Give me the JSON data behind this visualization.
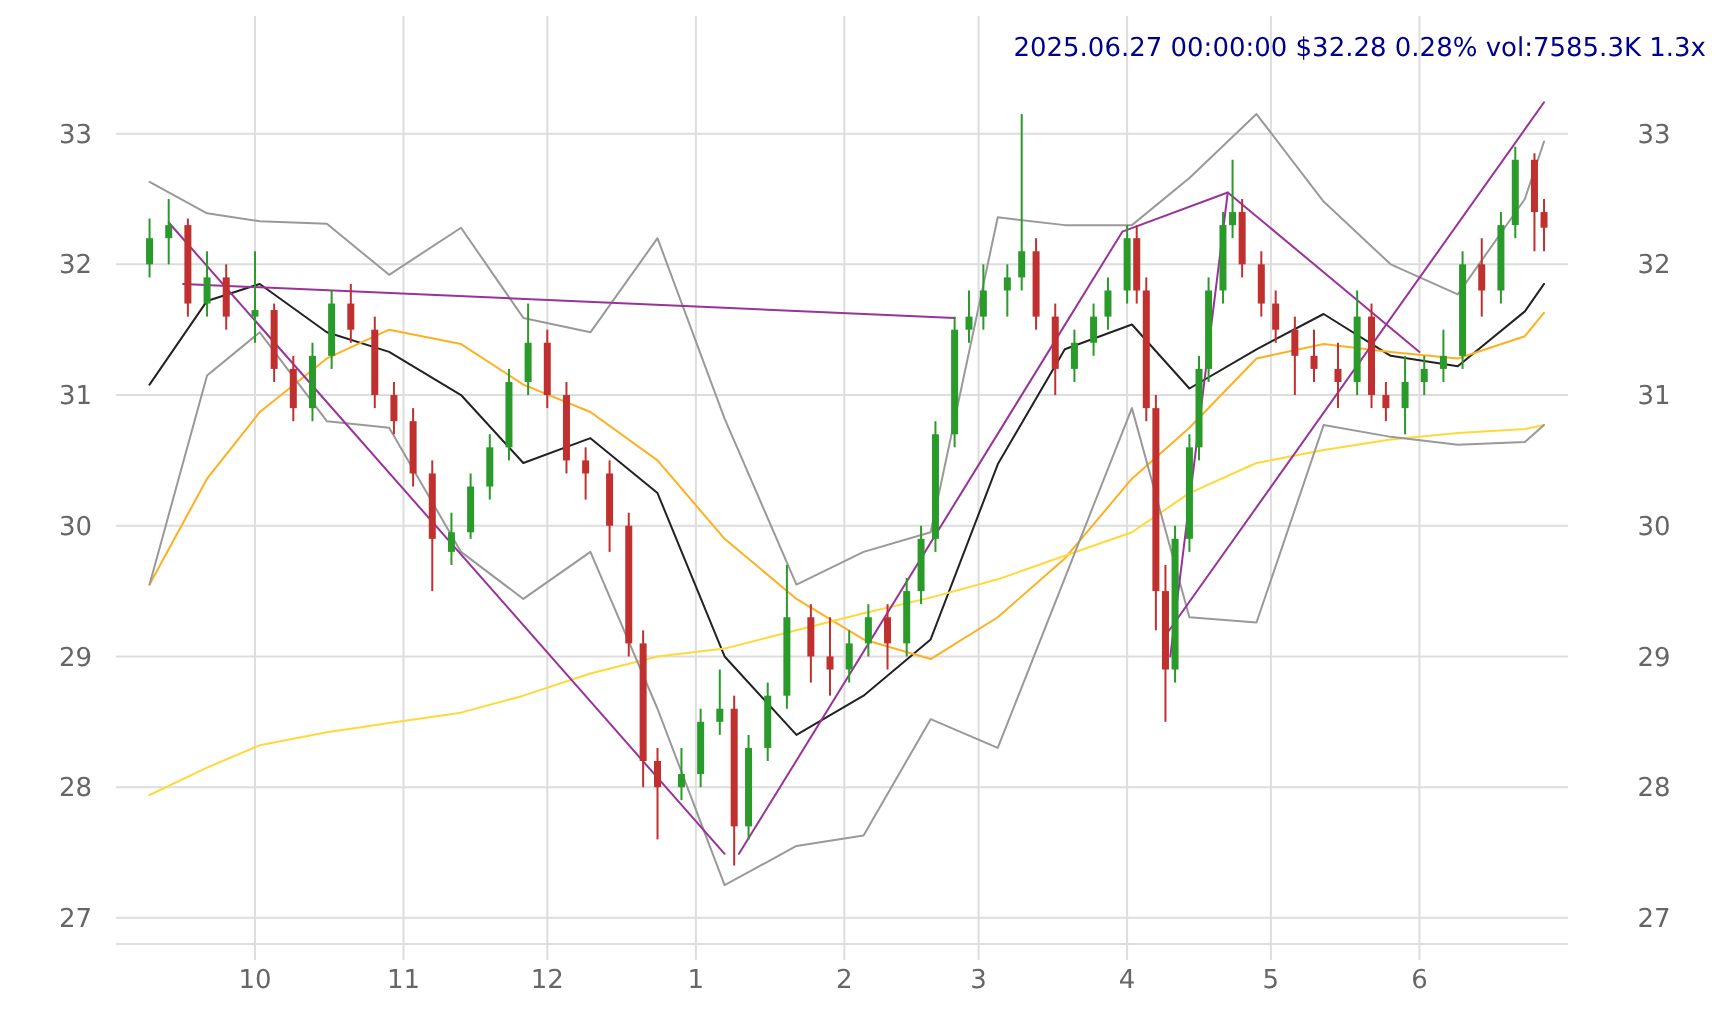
{
  "chart_data": {
    "type": "candlestick",
    "annotations": [
      "2025.06.27 00:00:00 $32.28 0.28% vol:7585.3K 1.3x"
    ],
    "xlim": [
      "2024-09-02",
      "2025-07-02"
    ],
    "xticks": [
      {
        "value": "2024-10-01",
        "label": "10"
      },
      {
        "value": "2024-11-01",
        "label": "11"
      },
      {
        "value": "2024-12-01",
        "label": "12"
      },
      {
        "value": "2025-01-01",
        "label": "1"
      },
      {
        "value": "2025-02-01",
        "label": "2"
      },
      {
        "value": "2025-03-01",
        "label": "3"
      },
      {
        "value": "2025-04-01",
        "label": "4"
      },
      {
        "value": "2025-05-01",
        "label": "5"
      },
      {
        "value": "2025-06-01",
        "label": "6"
      }
    ],
    "ylim": [
      26.8,
      33.9
    ],
    "yticks": [
      27,
      28,
      29,
      30,
      31,
      32,
      33
    ],
    "y2lim": [
      26.8,
      33.9
    ],
    "y2ticks": [
      27,
      28,
      29,
      30,
      31,
      32,
      33
    ],
    "grid": true,
    "series": [
      {
        "x": [
          "2024-09-09",
          "2024-09-13",
          "2024-09-17",
          "2024-09-21",
          "2024-09-25",
          "2024-10-01",
          "2024-10-05",
          "2024-10-09",
          "2024-10-13",
          "2024-10-17",
          "2024-10-21",
          "2024-10-26",
          "2024-10-30",
          "2024-11-03",
          "2024-11-07",
          "2024-11-11",
          "2024-11-15",
          "2024-11-19",
          "2024-11-23",
          "2024-11-27",
          "2024-12-01",
          "2024-12-05",
          "2024-12-09",
          "2024-12-14",
          "2024-12-18",
          "2024-12-21",
          "2024-12-24",
          "2024-12-29",
          "2025-01-02",
          "2025-01-06",
          "2025-01-09",
          "2025-01-12",
          "2025-01-16",
          "2025-01-20",
          "2025-01-25",
          "2025-01-29",
          "2025-02-02",
          "2025-02-06",
          "2025-02-10",
          "2025-02-14",
          "2025-02-17",
          "2025-02-20",
          "2025-02-24",
          "2025-02-27",
          "2025-03-02",
          "2025-03-07",
          "2025-03-10",
          "2025-03-13",
          "2025-03-17",
          "2025-03-21",
          "2025-03-25",
          "2025-03-28",
          "2025-04-01",
          "2025-04-03",
          "2025-04-05",
          "2025-04-07",
          "2025-04-09",
          "2025-04-11",
          "2025-04-14",
          "2025-04-16",
          "2025-04-18",
          "2025-04-21",
          "2025-04-23",
          "2025-04-25",
          "2025-04-29",
          "2025-05-02",
          "2025-05-06",
          "2025-05-10",
          "2025-05-15",
          "2025-05-19",
          "2025-05-22",
          "2025-05-25",
          "2025-05-29",
          "2025-06-02",
          "2025-06-06",
          "2025-06-10",
          "2025-06-14",
          "2025-06-18",
          "2025-06-21",
          "2025-06-25",
          "2025-06-27"
        ],
        "ohlc": [
          [
            32.0,
            32.35,
            31.9,
            32.2
          ],
          [
            32.2,
            32.5,
            32.0,
            32.3
          ],
          [
            32.3,
            32.35,
            31.6,
            31.7
          ],
          [
            31.7,
            32.1,
            31.6,
            31.9
          ],
          [
            31.9,
            32.0,
            31.5,
            31.6
          ],
          [
            31.6,
            32.1,
            31.4,
            31.65
          ],
          [
            31.65,
            31.7,
            31.1,
            31.2
          ],
          [
            31.2,
            31.3,
            30.8,
            30.9
          ],
          [
            30.9,
            31.4,
            30.8,
            31.3
          ],
          [
            31.3,
            31.8,
            31.2,
            31.7
          ],
          [
            31.7,
            31.85,
            31.4,
            31.5
          ],
          [
            31.5,
            31.6,
            30.9,
            31.0
          ],
          [
            31.0,
            31.1,
            30.7,
            30.8
          ],
          [
            30.8,
            30.9,
            30.3,
            30.4
          ],
          [
            30.4,
            30.5,
            29.5,
            29.9
          ],
          [
            29.8,
            30.1,
            29.7,
            29.95
          ],
          [
            29.95,
            30.4,
            29.9,
            30.3
          ],
          [
            30.3,
            30.7,
            30.2,
            30.6
          ],
          [
            30.6,
            31.2,
            30.5,
            31.1
          ],
          [
            31.1,
            31.7,
            31.0,
            31.4
          ],
          [
            31.4,
            31.5,
            30.9,
            31.0
          ],
          [
            31.0,
            31.1,
            30.4,
            30.5
          ],
          [
            30.5,
            30.6,
            30.2,
            30.4
          ],
          [
            30.4,
            30.5,
            29.8,
            30.0
          ],
          [
            30.0,
            30.1,
            29.0,
            29.1
          ],
          [
            29.1,
            29.2,
            28.0,
            28.2
          ],
          [
            28.2,
            28.3,
            27.6,
            28.0
          ],
          [
            28.0,
            28.3,
            27.9,
            28.1
          ],
          [
            28.1,
            28.6,
            28.0,
            28.5
          ],
          [
            28.5,
            28.9,
            28.4,
            28.6
          ],
          [
            28.6,
            28.7,
            27.4,
            27.7
          ],
          [
            27.7,
            28.4,
            27.6,
            28.3
          ],
          [
            28.3,
            28.8,
            28.2,
            28.7
          ],
          [
            28.7,
            29.7,
            28.6,
            29.3
          ],
          [
            29.3,
            29.4,
            28.8,
            29.0
          ],
          [
            29.0,
            29.3,
            28.7,
            28.9
          ],
          [
            28.9,
            29.2,
            28.8,
            29.1
          ],
          [
            29.1,
            29.4,
            29.0,
            29.3
          ],
          [
            29.3,
            29.4,
            28.9,
            29.1
          ],
          [
            29.1,
            29.6,
            29.0,
            29.5
          ],
          [
            29.5,
            30.0,
            29.4,
            29.9
          ],
          [
            29.9,
            30.8,
            29.8,
            30.7
          ],
          [
            30.7,
            31.6,
            30.6,
            31.5
          ],
          [
            31.5,
            31.8,
            31.4,
            31.6
          ],
          [
            31.6,
            32.0,
            31.5,
            31.8
          ],
          [
            31.8,
            32.0,
            31.6,
            31.9
          ],
          [
            31.9,
            33.15,
            31.8,
            32.1
          ],
          [
            32.1,
            32.2,
            31.5,
            31.6
          ],
          [
            31.6,
            31.7,
            31.0,
            31.2
          ],
          [
            31.2,
            31.5,
            31.1,
            31.4
          ],
          [
            31.4,
            31.7,
            31.3,
            31.6
          ],
          [
            31.6,
            31.9,
            31.5,
            31.8
          ],
          [
            31.8,
            32.3,
            31.7,
            32.2
          ],
          [
            32.2,
            32.3,
            31.7,
            31.8
          ],
          [
            31.8,
            31.9,
            30.8,
            30.9
          ],
          [
            30.9,
            31.0,
            29.2,
            29.5
          ],
          [
            29.5,
            29.7,
            28.5,
            28.9
          ],
          [
            28.9,
            30.0,
            28.8,
            29.9
          ],
          [
            29.9,
            30.7,
            29.8,
            30.6
          ],
          [
            30.6,
            31.3,
            30.5,
            31.2
          ],
          [
            31.2,
            31.9,
            31.1,
            31.8
          ],
          [
            31.8,
            32.4,
            31.7,
            32.3
          ],
          [
            32.3,
            32.8,
            32.2,
            32.4
          ],
          [
            32.4,
            32.5,
            31.9,
            32.0
          ],
          [
            32.0,
            32.1,
            31.6,
            31.7
          ],
          [
            31.7,
            31.8,
            31.4,
            31.5
          ],
          [
            31.5,
            31.6,
            31.0,
            31.3
          ],
          [
            31.3,
            31.5,
            31.1,
            31.2
          ],
          [
            31.2,
            31.4,
            30.9,
            31.1
          ],
          [
            31.1,
            31.8,
            31.0,
            31.6
          ],
          [
            31.6,
            31.7,
            30.9,
            31.0
          ],
          [
            31.0,
            31.1,
            30.8,
            30.9
          ],
          [
            30.9,
            31.3,
            30.7,
            31.1
          ],
          [
            31.1,
            31.3,
            31.0,
            31.2
          ],
          [
            31.2,
            31.5,
            31.1,
            31.3
          ],
          [
            31.3,
            32.1,
            31.2,
            32.0
          ],
          [
            32.0,
            32.2,
            31.6,
            31.8
          ],
          [
            31.8,
            32.4,
            31.7,
            32.3
          ],
          [
            32.3,
            32.9,
            32.2,
            32.8
          ],
          [
            32.8,
            32.85,
            32.1,
            32.4
          ],
          [
            32.4,
            32.5,
            32.1,
            32.28
          ]
        ]
      },
      {
        "type": "line",
        "color": "#222222",
        "x": [
          "2024-09-09",
          "2024-09-21",
          "2024-10-02",
          "2024-10-16",
          "2024-10-29",
          "2024-11-13",
          "2024-11-26",
          "2024-12-10",
          "2024-12-24",
          "2025-01-07",
          "2025-01-22",
          "2025-02-05",
          "2025-02-19",
          "2025-03-05",
          "2025-03-19",
          "2025-04-02",
          "2025-04-14",
          "2025-04-28",
          "2025-05-12",
          "2025-05-26",
          "2025-06-09",
          "2025-06-23",
          "2025-06-27"
        ],
        "values": [
          31.08,
          31.72,
          31.85,
          31.48,
          31.33,
          31.0,
          30.48,
          30.67,
          30.25,
          29.0,
          28.4,
          28.7,
          29.13,
          30.47,
          31.35,
          31.54,
          31.05,
          31.35,
          31.62,
          31.3,
          31.22,
          31.64,
          31.85
        ]
      },
      {
        "type": "line",
        "color": "#ffb020",
        "x": [
          "2024-09-09",
          "2024-09-21",
          "2024-10-02",
          "2024-10-16",
          "2024-10-29",
          "2024-11-13",
          "2024-11-26",
          "2024-12-10",
          "2024-12-24",
          "2025-01-07",
          "2025-01-22",
          "2025-02-05",
          "2025-02-19",
          "2025-03-05",
          "2025-03-19",
          "2025-04-02",
          "2025-04-14",
          "2025-04-28",
          "2025-05-12",
          "2025-05-26",
          "2025-06-09",
          "2025-06-23",
          "2025-06-27"
        ],
        "values": [
          29.55,
          30.36,
          30.87,
          31.28,
          31.5,
          31.39,
          31.08,
          30.87,
          30.5,
          29.9,
          29.44,
          29.13,
          28.98,
          29.3,
          29.75,
          30.36,
          30.75,
          31.28,
          31.39,
          31.33,
          31.28,
          31.45,
          31.63
        ]
      },
      {
        "type": "line",
        "color": "#ffd83a",
        "x": [
          "2024-09-09",
          "2024-09-21",
          "2024-10-02",
          "2024-10-16",
          "2024-10-29",
          "2024-11-13",
          "2024-11-26",
          "2024-12-10",
          "2024-12-24",
          "2025-01-07",
          "2025-01-22",
          "2025-02-05",
          "2025-02-19",
          "2025-03-05",
          "2025-03-19",
          "2025-04-02",
          "2025-04-14",
          "2025-04-28",
          "2025-05-12",
          "2025-05-26",
          "2025-06-09",
          "2025-06-23",
          "2025-06-27"
        ],
        "values": [
          27.94,
          28.15,
          28.32,
          28.42,
          28.49,
          28.57,
          28.7,
          28.87,
          29.0,
          29.06,
          29.2,
          29.33,
          29.45,
          29.59,
          29.77,
          29.95,
          30.25,
          30.48,
          30.58,
          30.66,
          30.71,
          30.74,
          30.77
        ]
      },
      {
        "type": "line",
        "color": "#999999",
        "x": [
          "2024-09-09",
          "2024-09-21",
          "2024-10-02",
          "2024-10-16",
          "2024-10-29",
          "2024-11-13",
          "2024-11-26",
          "2024-12-10",
          "2024-12-24",
          "2025-01-07",
          "2025-01-22",
          "2025-02-05",
          "2025-02-19",
          "2025-03-05",
          "2025-03-19",
          "2025-04-02",
          "2025-04-14",
          "2025-04-28",
          "2025-05-12",
          "2025-05-26",
          "2025-06-09",
          "2025-06-23",
          "2025-06-27"
        ],
        "values": [
          32.63,
          32.39,
          32.33,
          32.31,
          31.92,
          32.28,
          31.59,
          31.48,
          32.2,
          30.82,
          29.55,
          29.8,
          29.95,
          32.36,
          32.3,
          32.3,
          32.66,
          33.15,
          32.48,
          32.0,
          31.77,
          32.5,
          32.94
        ]
      },
      {
        "type": "line",
        "color": "#999999",
        "x": [
          "2024-09-09",
          "2024-09-21",
          "2024-10-02",
          "2024-10-16",
          "2024-10-29",
          "2024-11-13",
          "2024-11-26",
          "2024-12-10",
          "2024-12-24",
          "2025-01-07",
          "2025-01-22",
          "2025-02-05",
          "2025-02-19",
          "2025-03-05",
          "2025-03-19",
          "2025-04-02",
          "2025-04-14",
          "2025-04-28",
          "2025-05-12",
          "2025-05-26",
          "2025-06-09",
          "2025-06-23",
          "2025-06-27"
        ],
        "values": [
          29.55,
          31.15,
          31.48,
          30.8,
          30.75,
          29.8,
          29.44,
          29.8,
          28.6,
          27.25,
          27.55,
          27.63,
          28.52,
          28.3,
          29.6,
          30.9,
          29.3,
          29.26,
          30.77,
          30.68,
          30.62,
          30.64,
          30.77
        ]
      },
      {
        "type": "line",
        "color": "#993399",
        "x": [
          "2024-09-13",
          "2025-01-07"
        ],
        "values": [
          32.32,
          27.49
        ]
      },
      {
        "type": "line",
        "color": "#993399",
        "x": [
          "2024-09-16",
          "2025-02-24"
        ],
        "values": [
          31.85,
          31.59
        ]
      },
      {
        "type": "line",
        "color": "#993399",
        "x": [
          "2025-01-10",
          "2025-03-31",
          "2025-04-22",
          "2025-06-01"
        ],
        "values": [
          27.49,
          32.25,
          32.55,
          31.33
        ]
      },
      {
        "type": "line",
        "color": "#993399",
        "x": [
          "2025-04-10",
          "2025-04-22"
        ],
        "values": [
          29.0,
          32.55
        ]
      },
      {
        "type": "line",
        "color": "#993399",
        "x": [
          "2025-04-09",
          "2025-06-27"
        ],
        "values": [
          29.16,
          33.24
        ]
      }
    ]
  }
}
